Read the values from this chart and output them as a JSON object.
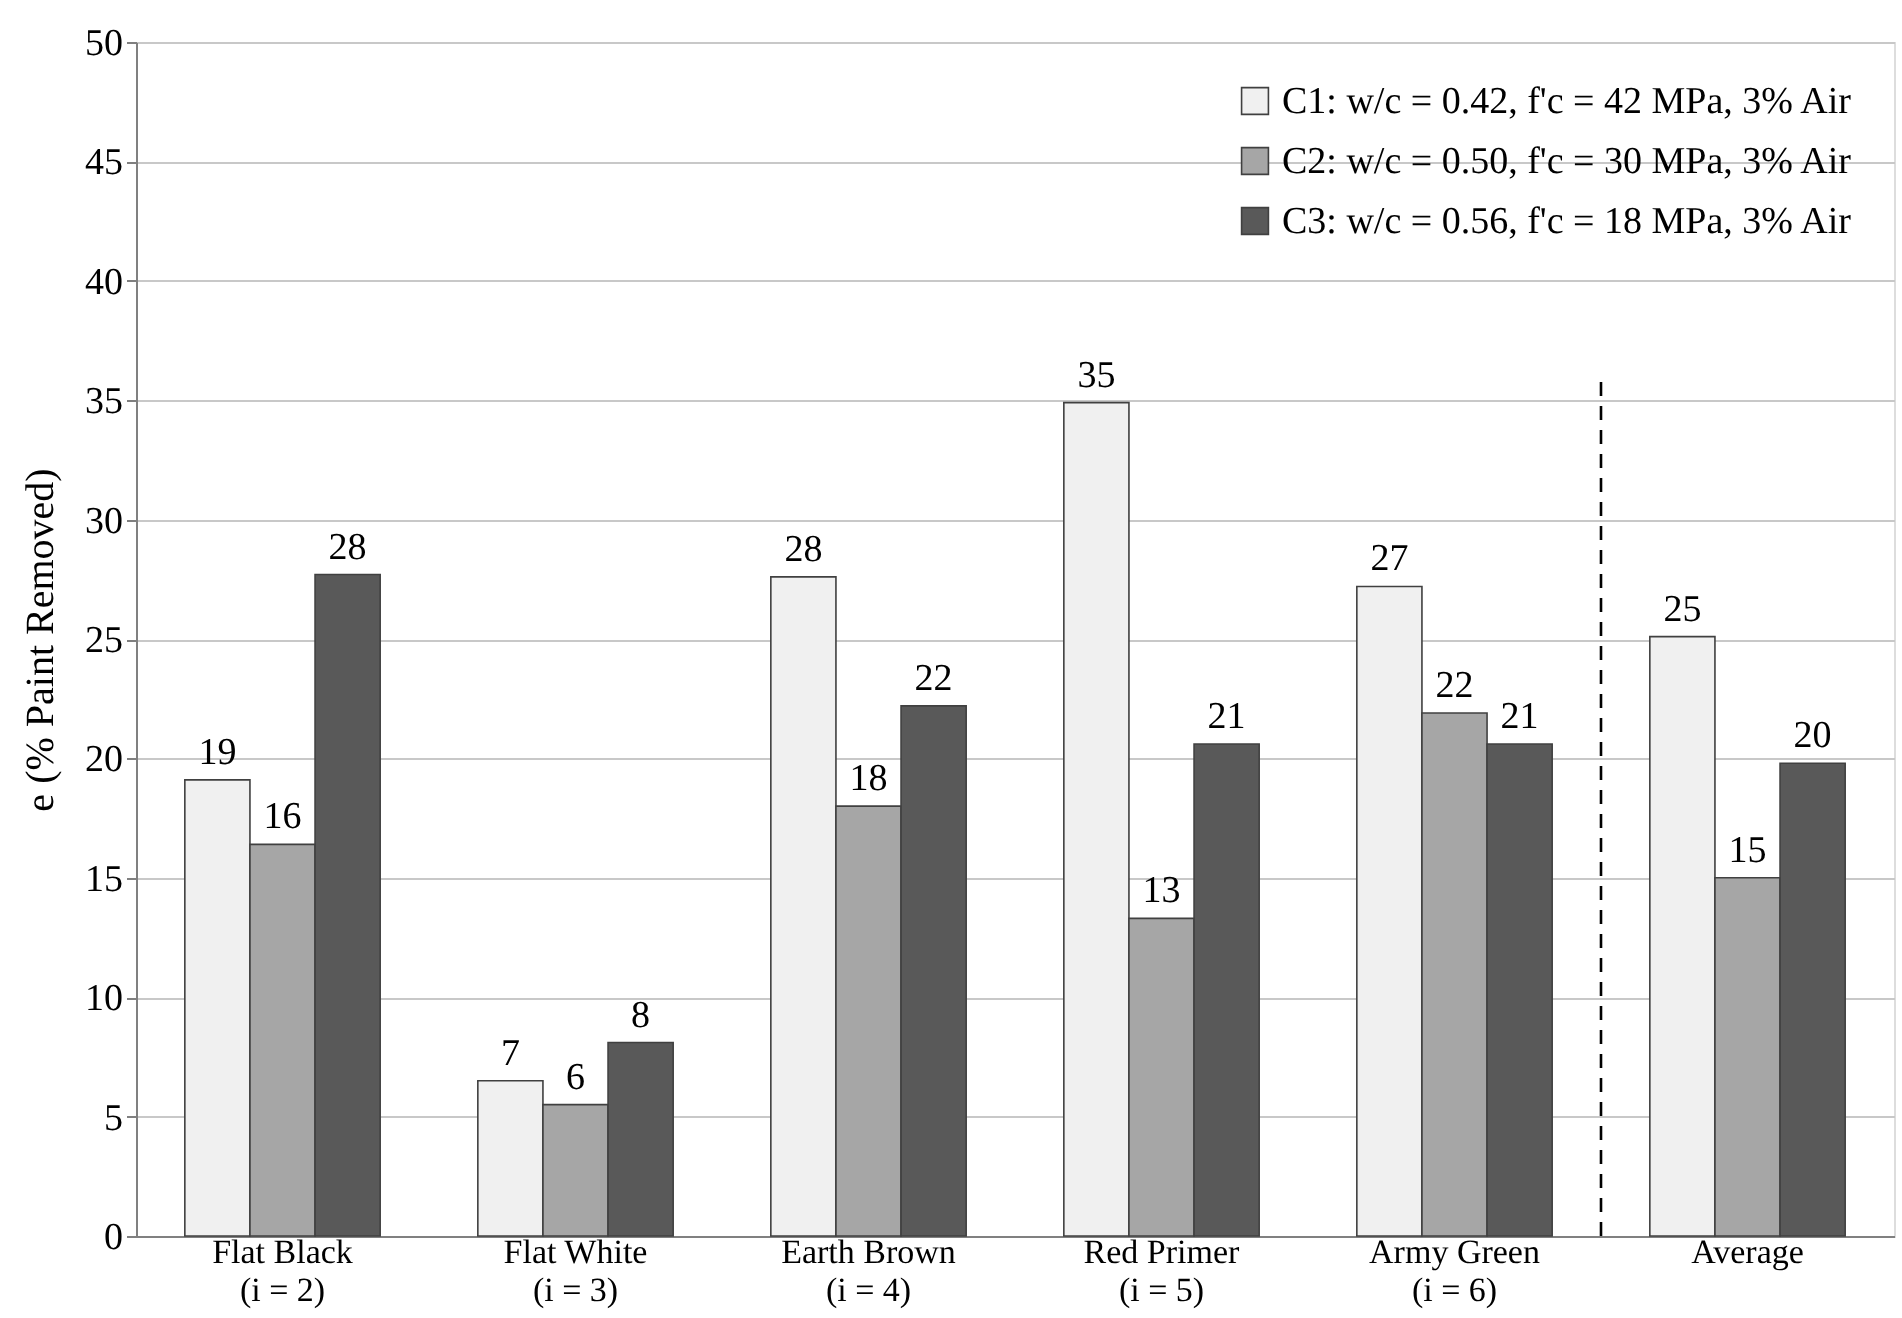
{
  "chart_data": {
    "type": "bar",
    "ylabel": "e (% Paint Removed)",
    "categories": [
      "Flat Black\n(i = 2)",
      "Flat White\n(i = 3)",
      "Earth Brown\n(i = 4)",
      "Red Primer\n(i = 5)",
      "Army Green\n(i = 6)",
      "Average"
    ],
    "series": [
      {
        "name": "C1: w/c = 0.42, f'c = 42 MPa, 3% Air",
        "color": "#f0f0f0",
        "values": [
          19.1,
          6.5,
          27.6,
          34.9,
          27.2,
          25.1
        ],
        "value_labels": [
          "19",
          "7",
          "28",
          "35",
          "27",
          "25"
        ]
      },
      {
        "name": "C2: w/c = 0.50, f'c = 30 MPa, 3% Air",
        "color": "#a6a6a6",
        "values": [
          16.4,
          5.5,
          18.0,
          13.3,
          21.9,
          15.0
        ],
        "value_labels": [
          "16",
          "6",
          "18",
          "13",
          "22",
          "15"
        ]
      },
      {
        "name": "C3: w/c = 0.56, f'c = 18 MPa, 3% Air",
        "color": "#595959",
        "values": [
          27.7,
          8.1,
          22.2,
          20.6,
          20.6,
          19.8
        ],
        "value_labels": [
          "28",
          "8",
          "22",
          "21",
          "21",
          "20"
        ]
      }
    ],
    "ylim": [
      0,
      50
    ],
    "yticks": [
      0,
      5,
      10,
      15,
      20,
      25,
      30,
      35,
      40,
      45,
      50
    ],
    "grid": "y",
    "legend": "top right",
    "ref_lines": [
      {
        "axis": "x",
        "value": "Average",
        "line_style": "dashed",
        "color": "#000000"
      }
    ]
  }
}
